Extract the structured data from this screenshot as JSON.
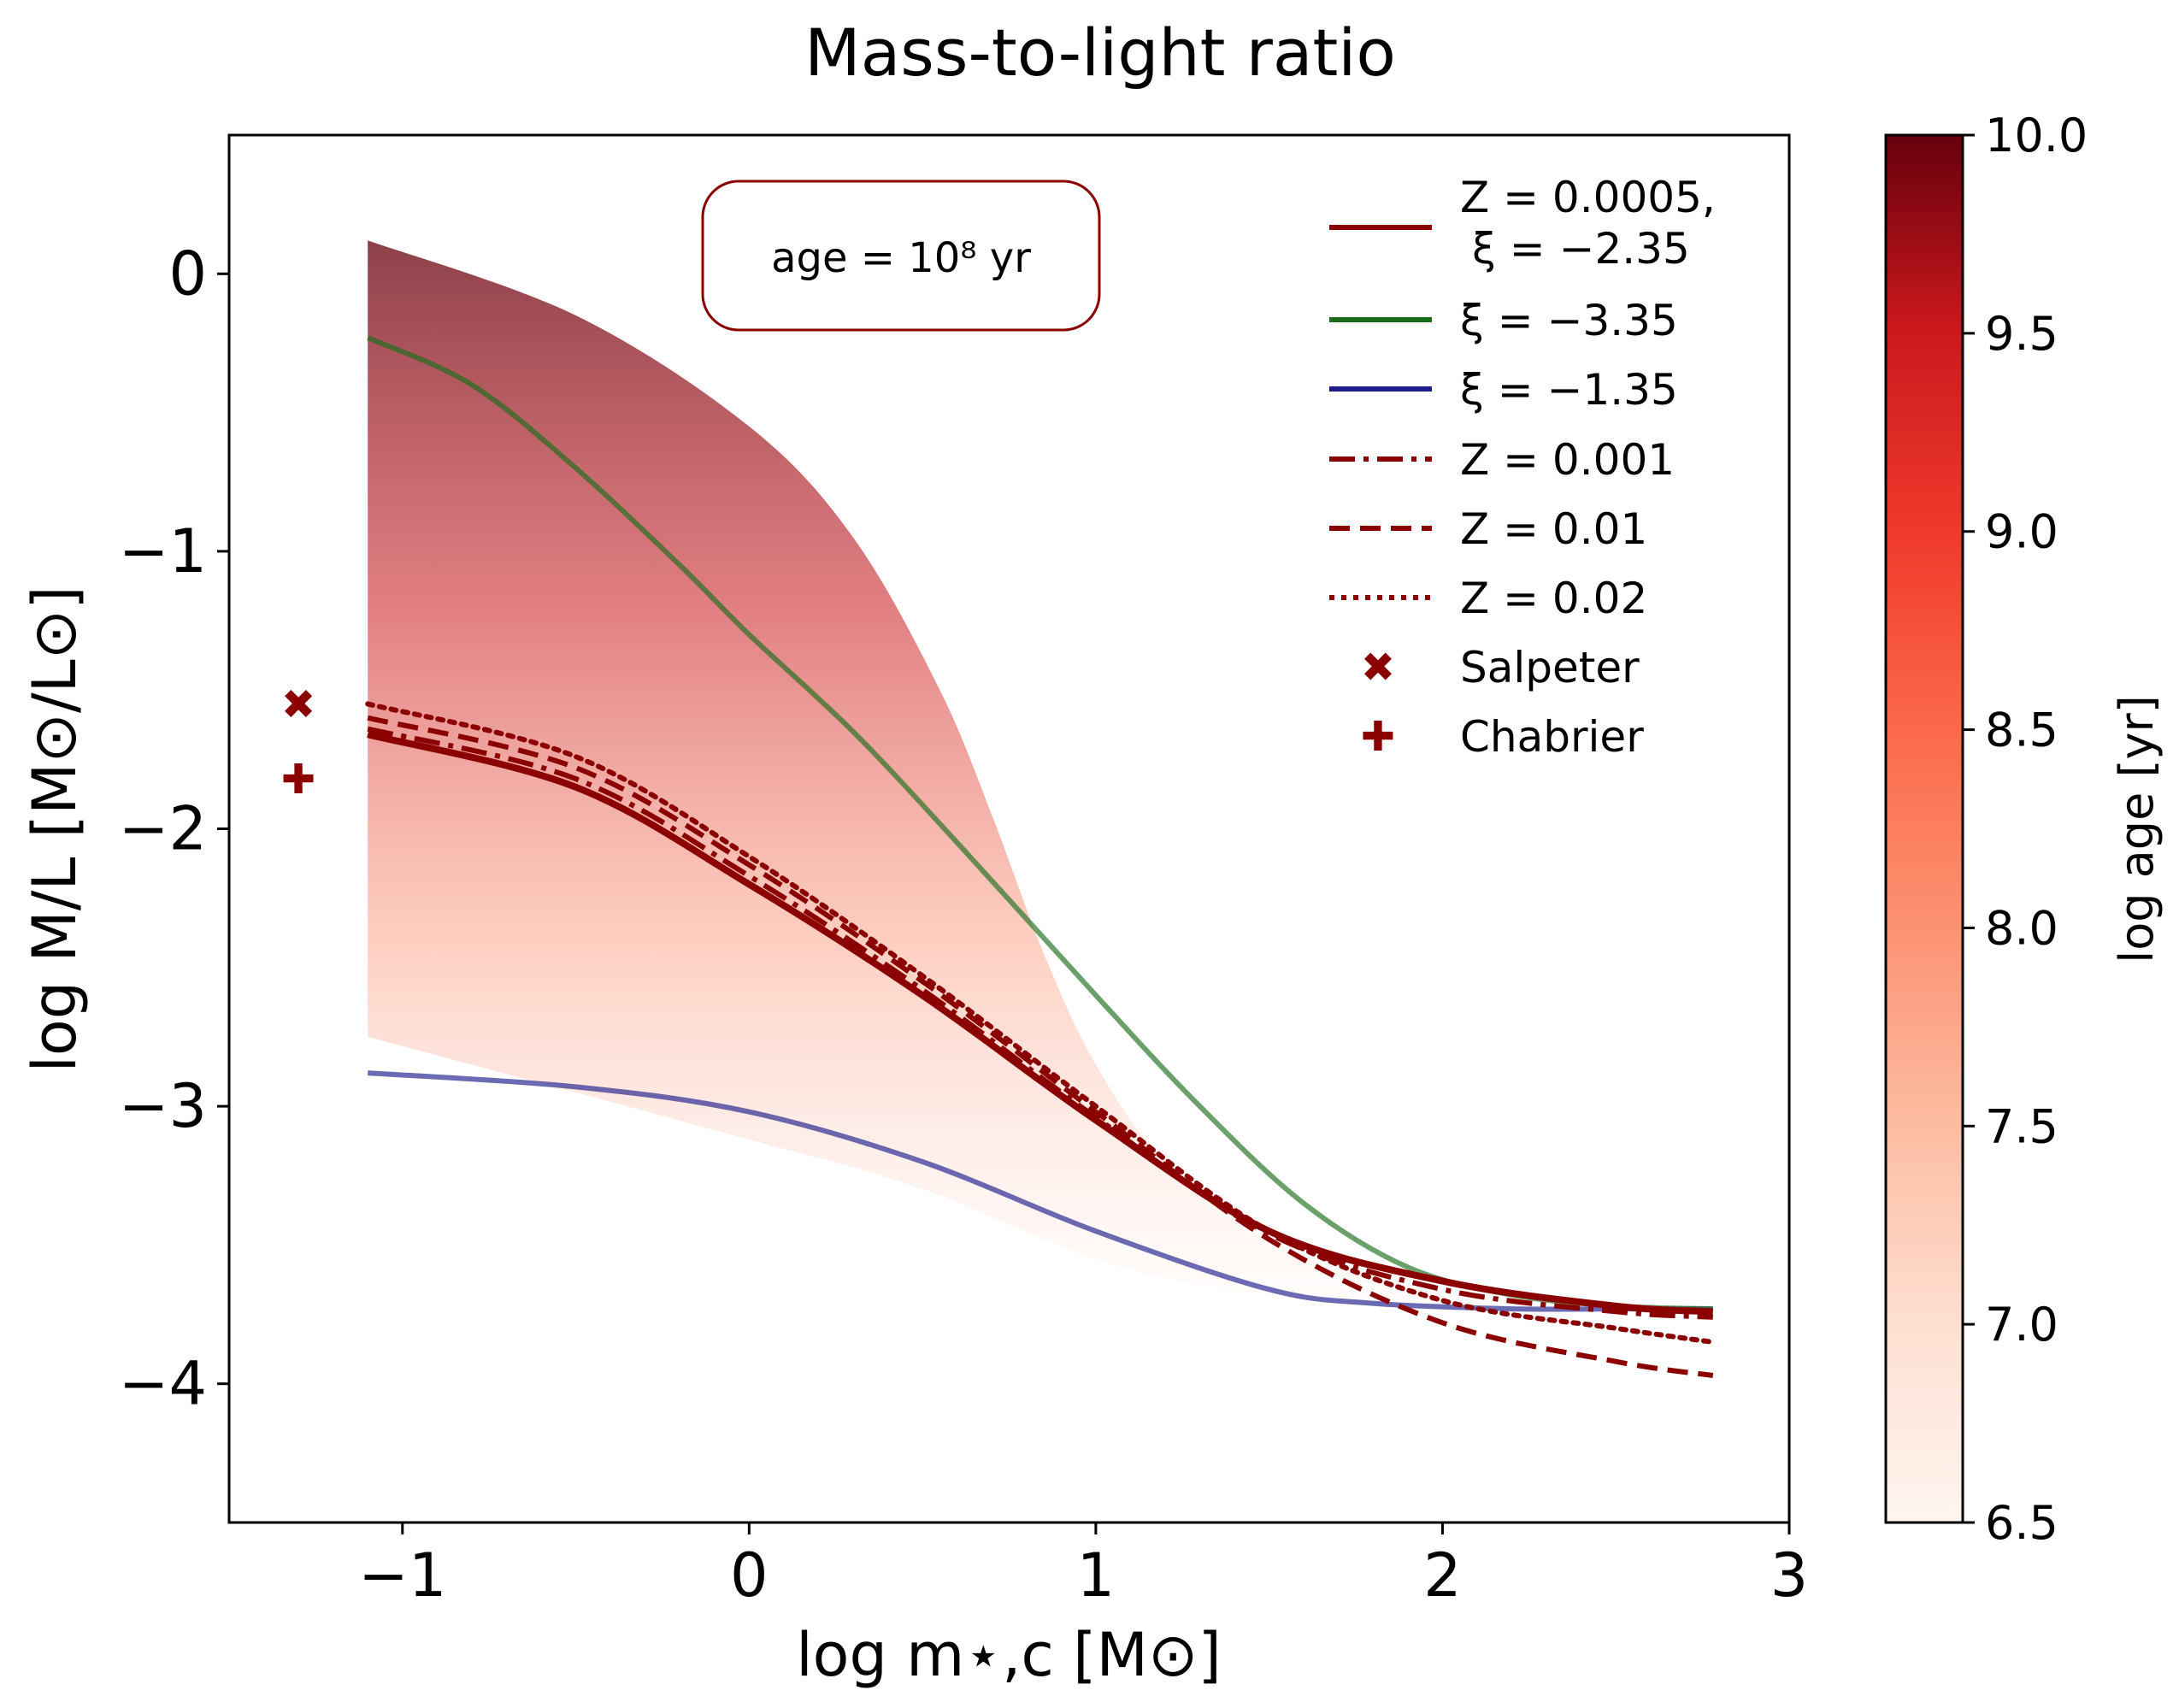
{
  "chart_data": {
    "type": "line",
    "title": "Mass-to-light ratio",
    "xlabel": "log m⋆,c [M⊙]",
    "ylabel": "log M/L [M⊙/L⊙]",
    "xlim": [
      -1.5,
      3.0
    ],
    "ylim": [
      -4.5,
      0.5
    ],
    "xticks": [
      -1,
      0,
      1,
      2,
      3
    ],
    "yticks": [
      0,
      -1,
      -2,
      -3,
      -4
    ],
    "annotation": "age = 10⁸ yr",
    "legend_position": "top-right",
    "colors": {
      "main": "#8b0000",
      "green": "#1a6e1a",
      "blue": "#1c1c8c",
      "band_dark": "#67000d",
      "band_light": "#fff5f0"
    },
    "colorbar": {
      "label": "log age [yr]",
      "range": [
        6.5,
        10.0
      ],
      "ticks": [
        "10.0",
        "9.5",
        "9.0",
        "8.5",
        "8.0",
        "7.5",
        "7.0",
        "6.5"
      ],
      "colormap": "Reds"
    },
    "age_band": {
      "x": [
        -1.1,
        -0.5,
        0.0,
        0.3,
        0.55,
        0.7,
        0.85,
        1.0,
        1.2,
        1.5,
        1.8,
        2.2,
        2.5,
        2.78
      ],
      "upper": [
        0.12,
        -0.15,
        -0.55,
        -0.95,
        -1.5,
        -1.95,
        -2.45,
        -2.85,
        -3.2,
        -3.48,
        -3.62,
        -3.7,
        -3.72,
        -3.73
      ],
      "lower": [
        -2.75,
        -2.95,
        -3.12,
        -3.22,
        -3.32,
        -3.4,
        -3.48,
        -3.55,
        -3.62,
        -3.68,
        -3.71,
        -3.72,
        -3.73,
        -3.73
      ]
    },
    "series": [
      {
        "name": "Z = 0.0005, ξ = −2.35",
        "style": "solid",
        "color": "#8b0000",
        "x": [
          -1.1,
          -0.5,
          0.0,
          0.5,
          1.0,
          1.5,
          2.0,
          2.5,
          2.78
        ],
        "y": [
          -1.66,
          -1.85,
          -2.2,
          -2.6,
          -3.05,
          -3.45,
          -3.63,
          -3.72,
          -3.74
        ]
      },
      {
        "name": "ξ = −3.35",
        "style": "solid",
        "color": "#1a6e1a",
        "x": [
          -1.1,
          -0.8,
          -0.5,
          -0.2,
          0.0,
          0.3,
          0.6,
          1.0,
          1.3,
          1.6,
          1.9,
          2.2,
          2.5,
          2.78
        ],
        "y": [
          -0.23,
          -0.4,
          -0.7,
          -1.05,
          -1.3,
          -1.65,
          -2.05,
          -2.6,
          -3.0,
          -3.35,
          -3.58,
          -3.68,
          -3.72,
          -3.73
        ]
      },
      {
        "name": "ξ = −1.35",
        "style": "solid",
        "color": "#1c1c8c",
        "x": [
          -1.1,
          -0.5,
          0.0,
          0.5,
          1.0,
          1.5,
          1.8,
          2.2,
          2.5,
          2.78
        ],
        "y": [
          -2.88,
          -2.93,
          -3.02,
          -3.2,
          -3.45,
          -3.66,
          -3.71,
          -3.73,
          -3.73,
          -3.73
        ]
      },
      {
        "name": "Z = 0.001",
        "style": "dashdot",
        "color": "#8b0000",
        "x": [
          -1.1,
          -0.5,
          0.0,
          0.5,
          1.0,
          1.5,
          2.0,
          2.5,
          2.78
        ],
        "y": [
          -1.64,
          -1.82,
          -2.17,
          -2.58,
          -3.04,
          -3.46,
          -3.66,
          -3.74,
          -3.76
        ]
      },
      {
        "name": "Z = 0.01",
        "style": "dashed",
        "color": "#8b0000",
        "x": [
          -1.1,
          -0.5,
          0.0,
          0.5,
          1.0,
          1.5,
          2.0,
          2.5,
          2.78
        ],
        "y": [
          -1.6,
          -1.78,
          -2.13,
          -2.55,
          -3.02,
          -3.48,
          -3.78,
          -3.92,
          -3.97
        ]
      },
      {
        "name": "Z = 0.02",
        "style": "dotted",
        "color": "#8b0000",
        "x": [
          -1.1,
          -0.5,
          0.0,
          0.5,
          1.0,
          1.5,
          2.0,
          2.5,
          2.78
        ],
        "y": [
          -1.55,
          -1.74,
          -2.1,
          -2.53,
          -3.0,
          -3.45,
          -3.7,
          -3.8,
          -3.85
        ]
      }
    ],
    "markers": [
      {
        "name": "Salpeter",
        "symbol": "x",
        "x": -1.3,
        "y": -1.55,
        "color": "#8b0000"
      },
      {
        "name": "Chabrier",
        "symbol": "plus",
        "x": -1.3,
        "y": -1.82,
        "color": "#8b0000"
      }
    ],
    "legend_text": {
      "main_line1": "Z = 0.0005,",
      "main_line2": "ξ = −2.35"
    }
  }
}
